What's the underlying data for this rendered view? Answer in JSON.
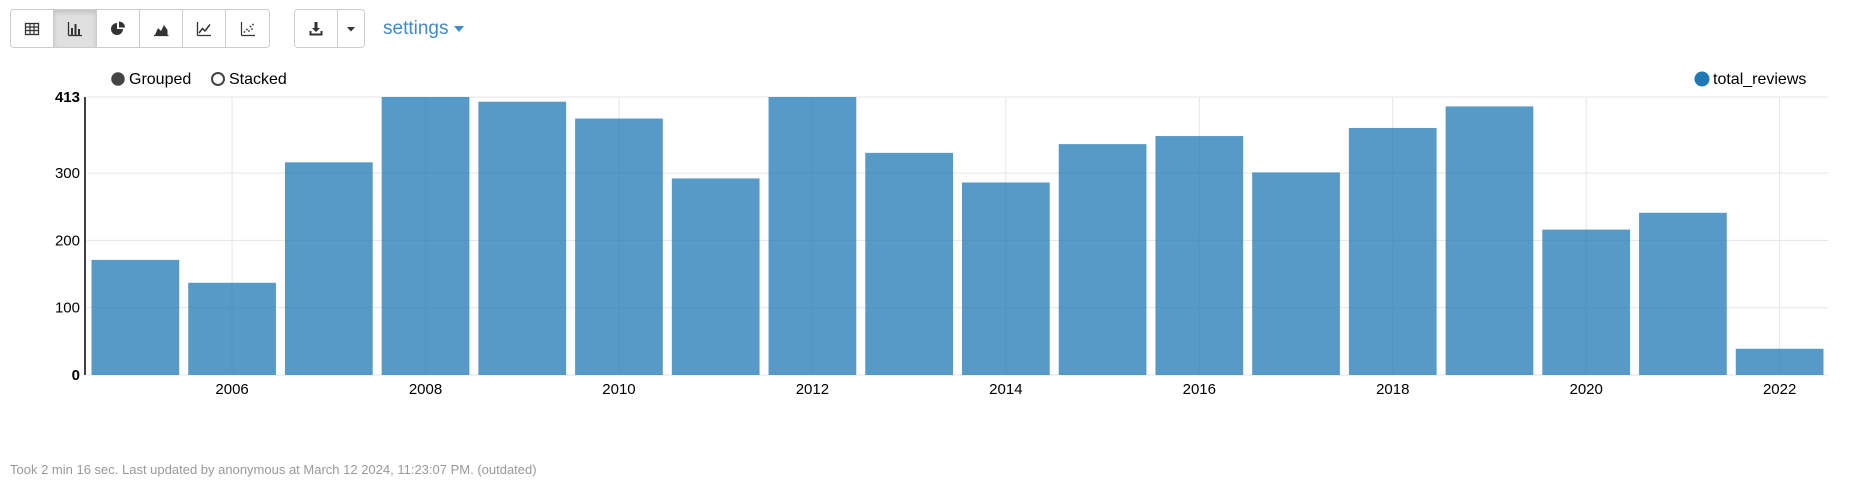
{
  "toolbar": {
    "view_buttons": [
      {
        "name": "table-view-button",
        "icon": "table-icon"
      },
      {
        "name": "bar-chart-view-button",
        "icon": "bar-chart-icon",
        "active": true
      },
      {
        "name": "pie-chart-view-button",
        "icon": "pie-chart-icon"
      },
      {
        "name": "area-chart-view-button",
        "icon": "area-chart-icon"
      },
      {
        "name": "line-chart-view-button",
        "icon": "line-chart-icon"
      },
      {
        "name": "scatter-chart-view-button",
        "icon": "scatter-chart-icon"
      }
    ],
    "download_icon": "download-icon",
    "dropdown_icon": "caret-down-icon",
    "settings_label": "settings"
  },
  "controls": {
    "grouped_label": "Grouped",
    "stacked_label": "Stacked",
    "selected": "Grouped"
  },
  "chart_data": {
    "type": "bar",
    "categories": [
      "2005",
      "2006",
      "2007",
      "2008",
      "2009",
      "2010",
      "2011",
      "2012",
      "2013",
      "2014",
      "2015",
      "2016",
      "2017",
      "2018",
      "2019",
      "2020",
      "2021",
      "2022"
    ],
    "series": [
      {
        "name": "total_reviews",
        "values": [
          171,
          137,
          316,
          413,
          406,
          381,
          292,
          413,
          330,
          286,
          343,
          355,
          301,
          367,
          399,
          216,
          241,
          39
        ],
        "color": "#1f77b4"
      }
    ],
    "x_tick_labels": [
      "2006",
      "2008",
      "2010",
      "2012",
      "2014",
      "2016",
      "2018",
      "2020",
      "2022"
    ],
    "y_tick_labels": [
      "0",
      "100",
      "200",
      "300",
      "413"
    ],
    "y_ticks": [
      0,
      100,
      200,
      300,
      413
    ],
    "ylim": [
      0,
      413
    ],
    "grid": true,
    "legend_position": "top-right",
    "title": "",
    "xlabel": "",
    "ylabel": ""
  },
  "footer": {
    "status_text": "Took 2 min 16 sec. Last updated by anonymous at March 12 2024, 11:23:07 PM. (outdated)"
  }
}
